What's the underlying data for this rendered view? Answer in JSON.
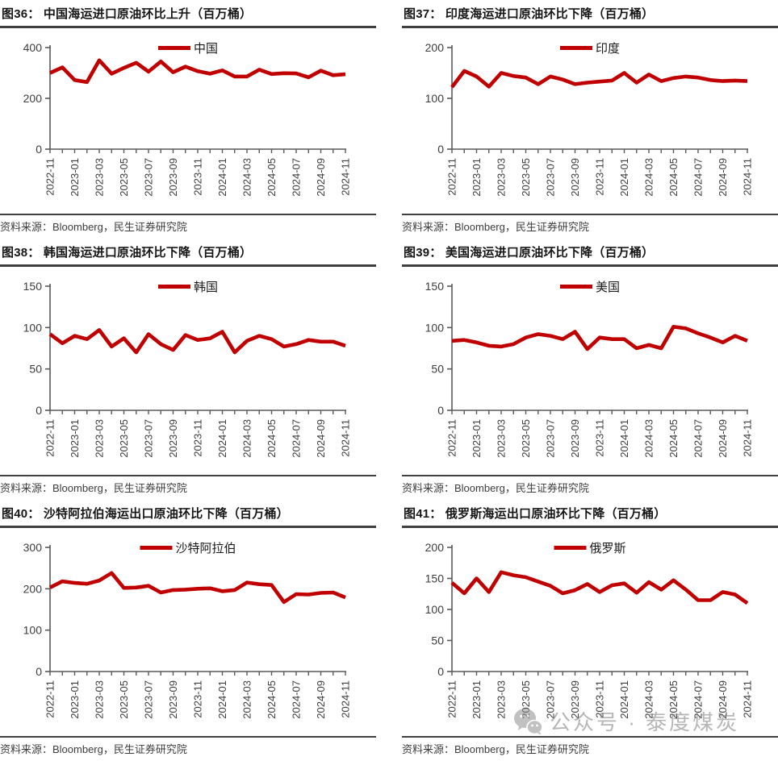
{
  "colors": {
    "line": "#c00000",
    "axis": "#595959",
    "tick_label": "#3d3d3d",
    "title": "#161616",
    "rule": "#404040",
    "watermark": "#7b7b7b",
    "background": "#ffffff"
  },
  "watermark": {
    "text": "公众号 · 泰度煤炭",
    "icon": "wechat-icon"
  },
  "chart_data": [
    {
      "type": "line",
      "title": "图36： 中国海运进口原油环比上升（百万桶）",
      "series_name": "中国",
      "source": "资料来源：Bloomberg，民生证券研究院",
      "x": [
        "2022-11",
        "2022-12",
        "2023-01",
        "2023-02",
        "2023-03",
        "2023-04",
        "2023-05",
        "2023-06",
        "2023-07",
        "2023-08",
        "2023-09",
        "2023-10",
        "2023-11",
        "2023-12",
        "2024-01",
        "2024-02",
        "2024-03",
        "2024-04",
        "2024-05",
        "2024-06",
        "2024-07",
        "2024-08",
        "2024-09",
        "2024-10",
        "2024-11"
      ],
      "values": [
        300,
        322,
        272,
        264,
        350,
        297,
        320,
        340,
        305,
        345,
        303,
        325,
        307,
        297,
        310,
        286,
        286,
        313,
        296,
        299,
        298,
        283,
        309,
        291,
        295
      ],
      "ylim": [
        0,
        400
      ],
      "yticks": [
        0,
        200,
        400
      ],
      "xtick_label_step": 2,
      "grid": false,
      "legend_position": "top-center"
    },
    {
      "type": "line",
      "title": "图37： 印度海运进口原油环比下降（百万桶）",
      "series_name": "印度",
      "source": "资料来源：Bloomberg，民生证券研究院",
      "x": [
        "2022-11",
        "2022-12",
        "2023-01",
        "2023-02",
        "2023-03",
        "2023-04",
        "2023-05",
        "2023-06",
        "2023-07",
        "2023-08",
        "2023-09",
        "2023-10",
        "2023-11",
        "2023-12",
        "2024-01",
        "2024-02",
        "2024-03",
        "2024-04",
        "2024-05",
        "2024-06",
        "2024-07",
        "2024-08",
        "2024-09",
        "2024-10",
        "2024-11"
      ],
      "values": [
        122,
        154,
        143,
        123,
        150,
        144,
        141,
        128,
        143,
        137,
        128,
        131,
        133,
        135,
        150,
        131,
        147,
        134,
        140,
        143,
        141,
        136,
        134,
        135,
        134
      ],
      "ylim": [
        0,
        200
      ],
      "yticks": [
        0,
        100,
        200
      ],
      "xtick_label_step": 2,
      "grid": false,
      "legend_position": "top-center"
    },
    {
      "type": "line",
      "title": "图38： 韩国海运进口原油环比下降（百万桶）",
      "series_name": "韩国",
      "source": "资料来源：Bloomberg，民生证券研究院",
      "x": [
        "2022-11",
        "2022-12",
        "2023-01",
        "2023-02",
        "2023-03",
        "2023-04",
        "2023-05",
        "2023-06",
        "2023-07",
        "2023-08",
        "2023-09",
        "2023-10",
        "2023-11",
        "2023-12",
        "2024-01",
        "2024-02",
        "2024-03",
        "2024-04",
        "2024-05",
        "2024-06",
        "2024-07",
        "2024-08",
        "2024-09",
        "2024-10",
        "2024-11"
      ],
      "values": [
        92,
        81,
        90,
        86,
        97,
        77,
        87,
        70,
        92,
        80,
        73,
        91,
        85,
        87,
        95,
        70,
        84,
        90,
        86,
        77,
        80,
        85,
        83,
        83,
        78
      ],
      "ylim": [
        0,
        150
      ],
      "yticks": [
        0,
        50,
        100,
        150
      ],
      "xtick_label_step": 2,
      "grid": false,
      "legend_position": "top-center"
    },
    {
      "type": "line",
      "title": "图39： 美国海运进口原油环比下降（百万桶）",
      "series_name": "美国",
      "source": "资料来源：Bloomberg，民生证券研究院",
      "x": [
        "2022-11",
        "2022-12",
        "2023-01",
        "2023-02",
        "2023-03",
        "2023-04",
        "2023-05",
        "2023-06",
        "2023-07",
        "2023-08",
        "2023-09",
        "2023-10",
        "2023-11",
        "2023-12",
        "2024-01",
        "2024-02",
        "2024-03",
        "2024-04",
        "2024-05",
        "2024-06",
        "2024-07",
        "2024-08",
        "2024-09",
        "2024-10",
        "2024-11"
      ],
      "values": [
        84,
        85,
        82,
        78,
        77,
        80,
        88,
        92,
        90,
        86,
        95,
        74,
        88,
        86,
        86,
        75,
        79,
        75,
        101,
        99,
        93,
        88,
        82,
        90,
        84
      ],
      "ylim": [
        0,
        150
      ],
      "yticks": [
        0,
        50,
        100,
        150
      ],
      "xtick_label_step": 2,
      "grid": false,
      "legend_position": "top-center"
    },
    {
      "type": "line",
      "title": "图40： 沙特阿拉伯海运出口原油环比下降（百万桶）",
      "series_name": "沙特阿拉伯",
      "source": "资料来源：Bloomberg，民生证券研究院",
      "x": [
        "2022-11",
        "2022-12",
        "2023-01",
        "2023-02",
        "2023-03",
        "2023-04",
        "2023-05",
        "2023-06",
        "2023-07",
        "2023-08",
        "2023-09",
        "2023-10",
        "2023-11",
        "2023-12",
        "2024-01",
        "2024-02",
        "2024-03",
        "2024-04",
        "2024-05",
        "2024-06",
        "2024-07",
        "2024-08",
        "2024-09",
        "2024-10",
        "2024-11"
      ],
      "values": [
        203,
        218,
        214,
        212,
        220,
        238,
        202,
        203,
        207,
        191,
        197,
        198,
        200,
        201,
        194,
        197,
        215,
        211,
        209,
        168,
        187,
        186,
        190,
        191,
        179
      ],
      "ylim": [
        0,
        300
      ],
      "yticks": [
        0,
        100,
        200,
        300
      ],
      "xtick_label_step": 2,
      "grid": false,
      "legend_position": "top-center"
    },
    {
      "type": "line",
      "title": "图41： 俄罗斯海运出口原油环比下降（百万桶）",
      "series_name": "俄罗斯",
      "source": "资料来源：Bloomberg，民生证券研究院",
      "x": [
        "2022-11",
        "2022-12",
        "2023-01",
        "2023-02",
        "2023-03",
        "2023-04",
        "2023-05",
        "2023-06",
        "2023-07",
        "2023-08",
        "2023-09",
        "2023-10",
        "2023-11",
        "2023-12",
        "2024-01",
        "2024-02",
        "2024-03",
        "2024-04",
        "2024-05",
        "2024-06",
        "2024-07",
        "2024-08",
        "2024-09",
        "2024-10",
        "2024-11"
      ],
      "values": [
        143,
        126,
        150,
        128,
        160,
        155,
        152,
        145,
        138,
        126,
        131,
        141,
        128,
        139,
        142,
        127,
        144,
        132,
        147,
        132,
        115,
        115,
        128,
        124,
        110
      ],
      "ylim": [
        0,
        200
      ],
      "yticks": [
        0,
        50,
        100,
        150,
        200
      ],
      "xtick_label_step": 2,
      "grid": false,
      "legend_position": "top-center"
    }
  ]
}
